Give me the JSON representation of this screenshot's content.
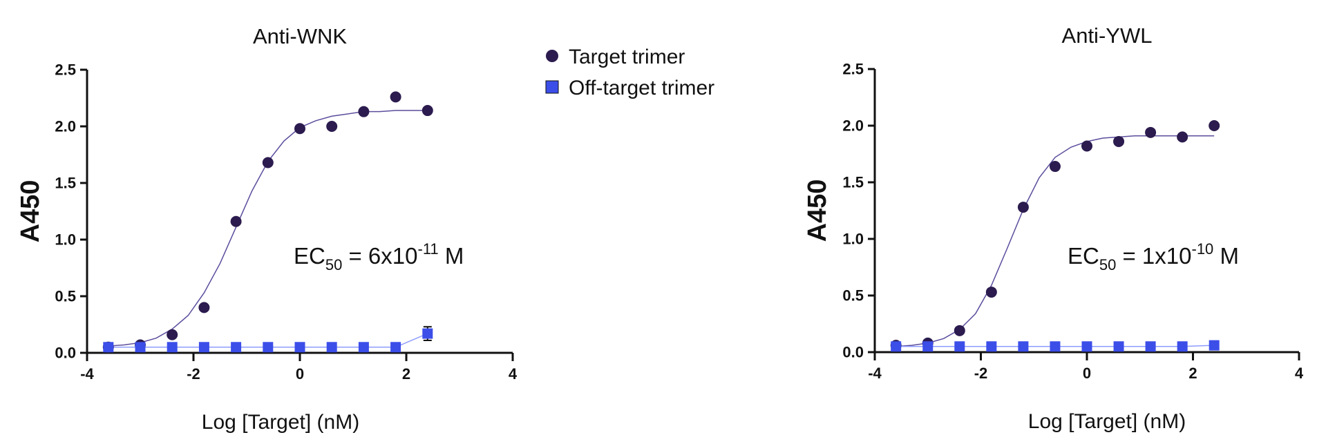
{
  "chart_data": [
    {
      "type": "scatter",
      "title": "Anti-WNK",
      "x_label": "Log [Target] (nM)",
      "y_label": "A450",
      "annotation": [
        "EC",
        "50",
        " = 6x10",
        "-11",
        " M"
      ],
      "xlim": [
        -4,
        4
      ],
      "xticks": [
        -4,
        -2,
        0,
        2,
        4
      ],
      "ylim": [
        0,
        2.5
      ],
      "yticks": [
        {
          "value": 0,
          "label": "0.0"
        },
        {
          "value": 0.5,
          "label": "0.5"
        },
        {
          "value": 1,
          "label": "1.0"
        },
        {
          "value": 1.5,
          "label": "1.5"
        },
        {
          "value": 2,
          "label": "2.0"
        },
        {
          "value": 2.5,
          "label": "2.5"
        }
      ],
      "x": [
        -3.6,
        -3.0,
        -2.4,
        -1.8,
        -1.2,
        -0.6,
        0,
        0.6,
        1.2,
        1.8,
        2.4
      ],
      "series": [
        {
          "name": "Target trimer",
          "marker": "circle",
          "color": "#2b1b4e",
          "line_color": "#5b4c9c",
          "values": [
            0.05,
            0.07,
            0.16,
            0.4,
            1.16,
            1.68,
            1.98,
            2.0,
            2.13,
            2.26,
            2.14
          ]
        },
        {
          "name": "Off-target trimer",
          "marker": "square",
          "color": "#3c4ee8",
          "line_color": "#8d9cff",
          "values": [
            0.05,
            0.05,
            0.05,
            0.05,
            0.05,
            0.05,
            0.05,
            0.05,
            0.05,
            0.05,
            0.17
          ],
          "errors": [
            null,
            null,
            null,
            null,
            null,
            null,
            null,
            null,
            null,
            null,
            0.06
          ]
        }
      ],
      "fit": {
        "x": [
          -3.6,
          -3.3,
          -3.0,
          -2.7,
          -2.4,
          -2.1,
          -1.8,
          -1.5,
          -1.2,
          -0.9,
          -0.6,
          -0.3,
          0,
          0.3,
          0.6,
          0.9,
          1.2,
          1.5,
          1.8,
          2.1,
          2.4
        ],
        "values": [
          0.06,
          0.07,
          0.09,
          0.13,
          0.21,
          0.33,
          0.53,
          0.79,
          1.11,
          1.43,
          1.69,
          1.87,
          1.99,
          2.05,
          2.09,
          2.11,
          2.13,
          2.13,
          2.14,
          2.14,
          2.14
        ]
      }
    },
    {
      "type": "scatter",
      "title": "Anti-YWL",
      "x_label": "Log [Target] (nM)",
      "y_label": "A450",
      "annotation": [
        "EC",
        "50",
        " = 1x10",
        "-10",
        " M"
      ],
      "xlim": [
        -4,
        4
      ],
      "xticks": [
        -4,
        -2,
        0,
        2,
        4
      ],
      "ylim": [
        0,
        2.5
      ],
      "yticks": [
        {
          "value": 0,
          "label": "0.0"
        },
        {
          "value": 0.5,
          "label": "0.5"
        },
        {
          "value": 1,
          "label": "1.0"
        },
        {
          "value": 1.5,
          "label": "1.5"
        },
        {
          "value": 2,
          "label": "2.0"
        },
        {
          "value": 2.5,
          "label": "2.5"
        }
      ],
      "x": [
        -3.6,
        -3.0,
        -2.4,
        -1.8,
        -1.2,
        -0.6,
        0,
        0.6,
        1.2,
        1.8,
        2.4
      ],
      "series": [
        {
          "marker": "circle",
          "color": "#2b1b4e",
          "line_color": "#5b4c9c",
          "values": [
            0.06,
            0.08,
            0.19,
            0.53,
            1.28,
            1.64,
            1.82,
            1.86,
            1.94,
            1.9,
            2.0
          ]
        },
        {
          "marker": "square",
          "color": "#3c4ee8",
          "line_color": "#8d9cff",
          "values": [
            0.05,
            0.05,
            0.05,
            0.05,
            0.05,
            0.05,
            0.05,
            0.05,
            0.05,
            0.05,
            0.06
          ]
        }
      ],
      "fit": {
        "x": [
          -3.6,
          -3.3,
          -3.0,
          -2.7,
          -2.4,
          -2.1,
          -1.8,
          -1.5,
          -1.2,
          -0.9,
          -0.6,
          -0.3,
          0,
          0.3,
          0.6,
          0.9,
          1.2,
          1.5,
          1.8,
          2.1,
          2.4
        ],
        "values": [
          0.05,
          0.06,
          0.08,
          0.12,
          0.2,
          0.34,
          0.59,
          0.92,
          1.26,
          1.54,
          1.72,
          1.81,
          1.86,
          1.89,
          1.9,
          1.91,
          1.91,
          1.91,
          1.91,
          1.91,
          1.91
        ]
      }
    }
  ]
}
